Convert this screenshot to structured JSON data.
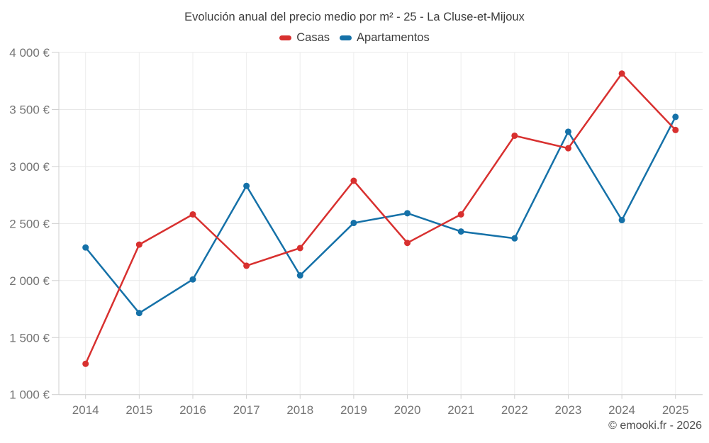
{
  "header": {
    "title": "Evolución anual del precio medio por m² - 25 - La Cluse-et-Mijoux"
  },
  "watermark": "© emooki.fr - 2026",
  "chart_data": {
    "type": "line",
    "title": "Evolución anual del precio medio por m² - 25 - La Cluse-et-Mijoux",
    "categories": [
      "2014",
      "2015",
      "2016",
      "2017",
      "2018",
      "2019",
      "2020",
      "2021",
      "2022",
      "2023",
      "2024",
      "2025"
    ],
    "series": [
      {
        "name": "Casas",
        "color": "#d8302f",
        "values": [
          1270,
          2315,
          2580,
          2130,
          2285,
          2875,
          2330,
          2580,
          3270,
          3160,
          3815,
          3320
        ]
      },
      {
        "name": "Apartamentos",
        "color": "#1571a8",
        "values": [
          2290,
          1715,
          2010,
          2830,
          2045,
          2505,
          2590,
          2430,
          2370,
          3305,
          2530,
          3435
        ]
      }
    ],
    "xlabel": "",
    "ylabel": "",
    "ylim": [
      1000,
      4000
    ],
    "ytick_step": 500,
    "ytick_labels": [
      "1 000 €",
      "1 500 €",
      "2 000 €",
      "2 500 €",
      "3 000 €",
      "3 500 €",
      "4 000 €"
    ],
    "grid": true,
    "legend_position": "top"
  }
}
